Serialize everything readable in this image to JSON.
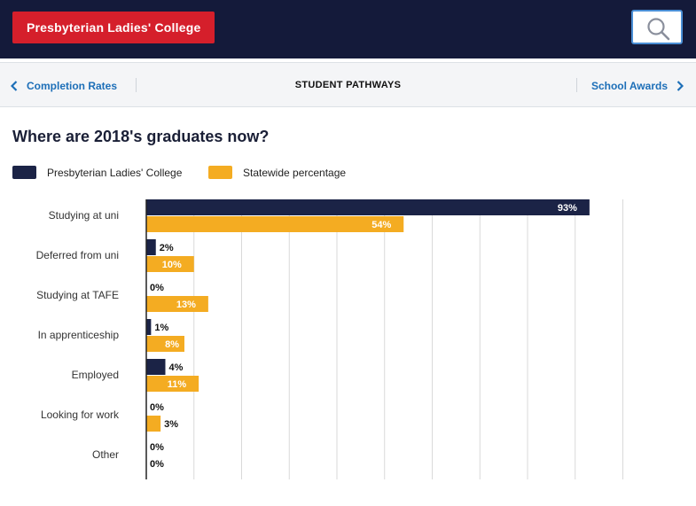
{
  "header": {
    "school_button": "Presbyterian Ladies' College",
    "search_icon": "search-icon"
  },
  "nav": {
    "prev_label": "Completion Rates",
    "title": "STUDENT PATHWAYS",
    "next_label": "School Awards"
  },
  "colors": {
    "header_bg": "#141a3a",
    "school_button": "#d51f2b",
    "link": "#1d6fb8",
    "series_school": "#1b2346",
    "series_state": "#f4ac22"
  },
  "chart_data": {
    "type": "bar",
    "orientation": "horizontal",
    "title": "Where are 2018's graduates now?",
    "categories": [
      "Studying at uni",
      "Deferred from uni",
      "Studying at TAFE",
      "In apprenticeship",
      "Employed",
      "Looking for work",
      "Other"
    ],
    "series": [
      {
        "name": "Presbyterian Ladies' College",
        "color": "#1b2346",
        "values": [
          93,
          2,
          0,
          1,
          4,
          0,
          0
        ],
        "labels": [
          "93%",
          "2%",
          "0%",
          "1%",
          "4%",
          "0%",
          "0%"
        ]
      },
      {
        "name": "Statewide percentage",
        "color": "#f4ac22",
        "values": [
          54,
          10,
          13,
          8,
          11,
          3,
          0
        ],
        "labels": [
          "54%",
          "10%",
          "13%",
          "8%",
          "11%",
          "3%",
          "0%"
        ]
      }
    ],
    "xlim": [
      0,
      100
    ],
    "grid": true,
    "legend": "top-left"
  }
}
